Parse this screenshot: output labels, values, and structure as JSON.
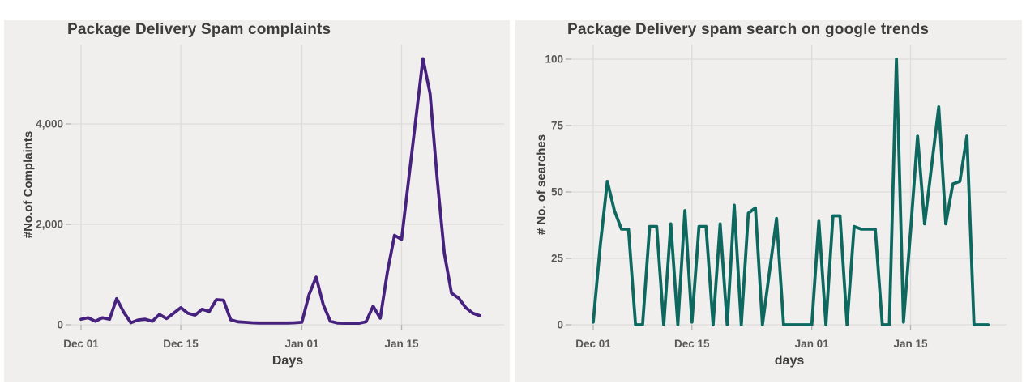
{
  "figure": {
    "background": "#ffffff",
    "panel_background": "#f0efed",
    "gridline_color": "#dcdcdb",
    "tick_color": "#b3b3b3"
  },
  "chart_data": [
    {
      "type": "line",
      "title": "Package Delivery Spam complaints",
      "xlabel": "Days",
      "ylabel": "#No.of Complaints",
      "line_color": "#46227e",
      "grid": true,
      "legend": "none",
      "ylim": [
        0,
        5400
      ],
      "yticks": [
        {
          "value": 0,
          "label": "0"
        },
        {
          "value": 2000,
          "label": "2,000"
        },
        {
          "value": 4000,
          "label": "4,000"
        }
      ],
      "xticks": [
        {
          "index": 0,
          "label": "Dec 01"
        },
        {
          "index": 14,
          "label": "Dec 15"
        },
        {
          "index": 31,
          "label": "Jan 01"
        },
        {
          "index": 45,
          "label": "Jan 15"
        }
      ],
      "x": [
        "Dec 01",
        "Dec 02",
        "Dec 03",
        "Dec 04",
        "Dec 05",
        "Dec 06",
        "Dec 07",
        "Dec 08",
        "Dec 09",
        "Dec 10",
        "Dec 11",
        "Dec 12",
        "Dec 13",
        "Dec 14",
        "Dec 15",
        "Dec 16",
        "Dec 17",
        "Dec 18",
        "Dec 19",
        "Dec 20",
        "Dec 21",
        "Dec 22",
        "Dec 23",
        "Dec 24",
        "Dec 25",
        "Dec 26",
        "Dec 27",
        "Dec 28",
        "Dec 29",
        "Dec 30",
        "Dec 31",
        "Jan 01",
        "Jan 02",
        "Jan 03",
        "Jan 04",
        "Jan 05",
        "Jan 06",
        "Jan 07",
        "Jan 08",
        "Jan 09",
        "Jan 10",
        "Jan 11",
        "Jan 12",
        "Jan 13",
        "Jan 14",
        "Jan 15",
        "Jan 16",
        "Jan 17",
        "Jan 18",
        "Jan 19",
        "Jan 20",
        "Jan 21",
        "Jan 22",
        "Jan 23",
        "Jan 24",
        "Jan 25",
        "Jan 26"
      ],
      "values": [
        110,
        140,
        70,
        140,
        110,
        520,
        250,
        40,
        95,
        110,
        70,
        205,
        125,
        230,
        340,
        230,
        190,
        310,
        265,
        500,
        490,
        100,
        60,
        50,
        40,
        35,
        35,
        35,
        35,
        35,
        40,
        50,
        600,
        950,
        400,
        70,
        35,
        30,
        30,
        30,
        60,
        370,
        130,
        1050,
        1780,
        1700,
        2900,
        4100,
        5300,
        4600,
        2900,
        1420,
        630,
        530,
        340,
        230,
        180
      ]
    },
    {
      "type": "line",
      "title": "Package Delivery spam search on google trends",
      "xlabel": "days",
      "ylabel": "# No. of searches",
      "line_color": "#0d695f",
      "grid": true,
      "legend": "none",
      "ylim": [
        0,
        100
      ],
      "yticks": [
        {
          "value": 0,
          "label": "0"
        },
        {
          "value": 25,
          "label": "25"
        },
        {
          "value": 50,
          "label": "50"
        },
        {
          "value": 75,
          "label": "75"
        },
        {
          "value": 100,
          "label": "100"
        }
      ],
      "xticks": [
        {
          "index": 0,
          "label": "Dec 01"
        },
        {
          "index": 14,
          "label": "Dec 15"
        },
        {
          "index": 31,
          "label": "Jan 01"
        },
        {
          "index": 45,
          "label": "Jan 15"
        }
      ],
      "x": [
        "Dec 01",
        "Dec 02",
        "Dec 03",
        "Dec 04",
        "Dec 05",
        "Dec 06",
        "Dec 07",
        "Dec 08",
        "Dec 09",
        "Dec 10",
        "Dec 11",
        "Dec 12",
        "Dec 13",
        "Dec 14",
        "Dec 15",
        "Dec 16",
        "Dec 17",
        "Dec 18",
        "Dec 19",
        "Dec 20",
        "Dec 21",
        "Dec 22",
        "Dec 23",
        "Dec 24",
        "Dec 25",
        "Dec 26",
        "Dec 27",
        "Dec 28",
        "Dec 29",
        "Dec 30",
        "Dec 31",
        "Jan 01",
        "Jan 02",
        "Jan 03",
        "Jan 04",
        "Jan 05",
        "Jan 06",
        "Jan 07",
        "Jan 08",
        "Jan 09",
        "Jan 10",
        "Jan 11",
        "Jan 12",
        "Jan 13",
        "Jan 14",
        "Jan 15",
        "Jan 16",
        "Jan 17",
        "Jan 18",
        "Jan 19",
        "Jan 20",
        "Jan 21",
        "Jan 22",
        "Jan 23",
        "Jan 24",
        "Jan 25",
        "Jan 26"
      ],
      "values": [
        1,
        30,
        54,
        43,
        36,
        36,
        0,
        0,
        37,
        37,
        0,
        38,
        0,
        43,
        1,
        37,
        37,
        0,
        38,
        0,
        45,
        0,
        42,
        44,
        0,
        20,
        40,
        0,
        0,
        0,
        0,
        0,
        39,
        0,
        41,
        41,
        0,
        37,
        36,
        36,
        36,
        0,
        0,
        100,
        1,
        35,
        71,
        38,
        60,
        82,
        38,
        53,
        54,
        71,
        0,
        0,
        0
      ]
    }
  ]
}
